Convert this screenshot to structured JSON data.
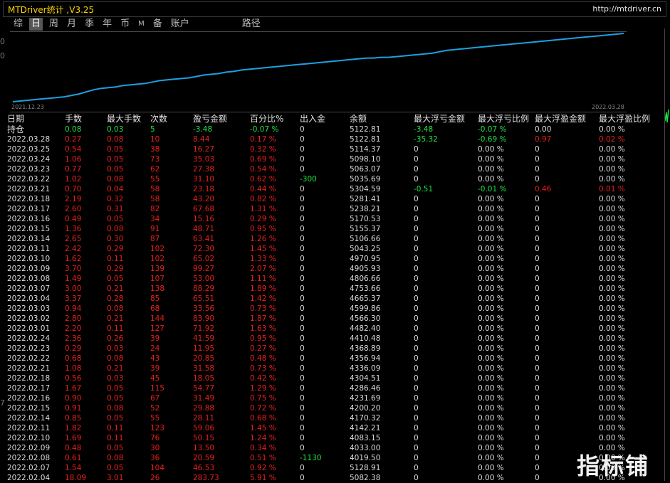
{
  "window": {
    "title": "MTDriver统计 ,V3.25",
    "url": "http://mtdriver.cn"
  },
  "tabs": [
    {
      "label": "综"
    },
    {
      "label": "日"
    },
    {
      "label": "周"
    },
    {
      "label": "月"
    },
    {
      "label": "季"
    },
    {
      "label": "年"
    },
    {
      "label": "币"
    },
    {
      "label": "M"
    },
    {
      "label": "备"
    },
    {
      "label": "账户"
    },
    {
      "label": "路径"
    }
  ],
  "active_tab": "日",
  "side_marks": {
    "left": "0",
    "left2": "0",
    "left3": "7"
  },
  "chart_data": {
    "type": "line",
    "x_start": "2021.12.23",
    "x_end": "2022.03.28",
    "line_color": "#1ea0e0",
    "y": [
      0,
      1,
      2,
      3,
      4,
      5,
      6,
      7,
      9,
      11,
      14,
      17,
      19,
      20,
      21,
      23,
      24,
      25,
      26,
      28,
      30,
      31,
      32,
      33,
      34,
      36,
      38,
      39,
      40,
      42,
      43,
      45,
      46,
      47,
      48,
      49,
      50,
      51,
      52,
      53,
      54,
      55,
      56,
      57,
      58,
      59,
      60,
      61,
      62,
      62,
      63,
      63,
      64,
      65,
      66,
      67,
      68,
      69,
      71,
      73,
      74,
      75,
      76,
      77,
      78,
      79,
      80,
      81,
      82,
      83,
      84,
      85,
      86,
      87,
      88,
      89,
      90,
      91,
      92,
      93,
      94,
      95,
      96,
      97
    ]
  },
  "table": {
    "headers": [
      "日期",
      "手数",
      "最大手数",
      "次数",
      "盈亏金额",
      "百分比%",
      "出入金",
      "余额",
      "最大浮亏金额",
      "最大浮亏比例",
      "最大浮盈金额",
      "最大浮盈比例"
    ],
    "holding": {
      "label": "持仓",
      "lots": "0.08",
      "max_lots": "0.03",
      "count": "5",
      "pnl": "-3.48",
      "pct": "-0.07 %",
      "io": "0",
      "balance": "5122.81",
      "mfl": "-3.48",
      "mflp": "-0.07 %",
      "mfp": "0.00",
      "mfpp": "0.00 %"
    },
    "rows": [
      [
        "2022.03.28",
        "0.27",
        "0.08",
        "10",
        "8.44",
        "0.17 %",
        "0",
        "5122.81",
        "-35.32",
        "-0.69 %",
        "0.97",
        "0.02 %"
      ],
      [
        "2022.03.25",
        "0.54",
        "0.05",
        "38",
        "16.27",
        "0.32 %",
        "0",
        "5114.37",
        "0",
        "0.00 %",
        "0",
        "0.00 %"
      ],
      [
        "2022.03.24",
        "1.06",
        "0.05",
        "73",
        "35.03",
        "0.69 %",
        "0",
        "5098.10",
        "0",
        "0.00 %",
        "0",
        "0.00 %"
      ],
      [
        "2022.03.23",
        "0.77",
        "0.05",
        "62",
        "27.38",
        "0.54 %",
        "0",
        "5063.07",
        "0",
        "0.00 %",
        "0",
        "0.00 %"
      ],
      [
        "2022.03.22",
        "1.02",
        "0.08",
        "55",
        "31.10",
        "0.62 %",
        "-300",
        "5035.69",
        "0",
        "0.00 %",
        "0",
        "0.00 %"
      ],
      [
        "2022.03.21",
        "0.70",
        "0.04",
        "58",
        "23.18",
        "0.44 %",
        "0",
        "5304.59",
        "-0.51",
        "-0.01 %",
        "0.46",
        "0.01 %"
      ],
      [
        "2022.03.18",
        "2.19",
        "0.32",
        "58",
        "43.20",
        "0.82 %",
        "0",
        "5281.41",
        "0",
        "0.00 %",
        "0",
        "0.00 %"
      ],
      [
        "2022.03.17",
        "2.60",
        "0.31",
        "82",
        "67.68",
        "1.31 %",
        "0",
        "5238.21",
        "0",
        "0.00 %",
        "0",
        "0.00 %"
      ],
      [
        "2022.03.16",
        "0.49",
        "0.05",
        "34",
        "15.16",
        "0.29 %",
        "0",
        "5170.53",
        "0",
        "0.00 %",
        "0",
        "0.00 %"
      ],
      [
        "2022.03.15",
        "1.36",
        "0.08",
        "91",
        "48.71",
        "0.95 %",
        "0",
        "5155.37",
        "0",
        "0.00 %",
        "0",
        "0.00 %"
      ],
      [
        "2022.03.14",
        "2.65",
        "0.30",
        "87",
        "63.41",
        "1.26 %",
        "0",
        "5106.66",
        "0",
        "0.00 %",
        "0",
        "0.00 %"
      ],
      [
        "2022.03.11",
        "2.42",
        "0.29",
        "102",
        "72.30",
        "1.45 %",
        "0",
        "5043.25",
        "0",
        "0.00 %",
        "0",
        "0.00 %"
      ],
      [
        "2022.03.10",
        "1.62",
        "0.11",
        "102",
        "65.02",
        "1.33 %",
        "0",
        "4970.95",
        "0",
        "0.00 %",
        "0",
        "0.00 %"
      ],
      [
        "2022.03.09",
        "3.70",
        "0.29",
        "139",
        "99.27",
        "2.07 %",
        "0",
        "4905.93",
        "0",
        "0.00 %",
        "0",
        "0.00 %"
      ],
      [
        "2022.03.08",
        "1.49",
        "0.05",
        "107",
        "53.00",
        "1.11 %",
        "0",
        "4806.66",
        "0",
        "0.00 %",
        "0",
        "0.00 %"
      ],
      [
        "2022.03.07",
        "3.00",
        "0.21",
        "138",
        "88.29",
        "1.89 %",
        "0",
        "4753.66",
        "0",
        "0.00 %",
        "0",
        "0.00 %"
      ],
      [
        "2022.03.04",
        "3.37",
        "0.28",
        "85",
        "65.51",
        "1.42 %",
        "0",
        "4665.37",
        "0",
        "0.00 %",
        "0",
        "0.00 %"
      ],
      [
        "2022.03.03",
        "0.94",
        "0.08",
        "68",
        "33.56",
        "0.73 %",
        "0",
        "4599.86",
        "0",
        "0.00 %",
        "0",
        "0.00 %"
      ],
      [
        "2022.03.02",
        "2.80",
        "0.21",
        "144",
        "83.90",
        "1.87 %",
        "0",
        "4566.30",
        "0",
        "0.00 %",
        "0",
        "0.00 %"
      ],
      [
        "2022.03.01",
        "2.20",
        "0.11",
        "127",
        "71.92",
        "1.63 %",
        "0",
        "4482.40",
        "0",
        "0.00 %",
        "0",
        "0.00 %"
      ],
      [
        "2022.02.24",
        "2.36",
        "0.26",
        "39",
        "41.59",
        "0.95 %",
        "0",
        "4410.48",
        "0",
        "0.00 %",
        "0",
        "0.00 %"
      ],
      [
        "2022.02.23",
        "0.29",
        "0.03",
        "24",
        "11.95",
        "0.27 %",
        "0",
        "4368.89",
        "0",
        "0.00 %",
        "0",
        "0.00 %"
      ],
      [
        "2022.02.22",
        "0.68",
        "0.08",
        "43",
        "20.85",
        "0.48 %",
        "0",
        "4356.94",
        "0",
        "0.00 %",
        "0",
        "0.00 %"
      ],
      [
        "2022.02.21",
        "1.08",
        "0.21",
        "39",
        "31.58",
        "0.73 %",
        "0",
        "4336.09",
        "0",
        "0.00 %",
        "0",
        "0.00 %"
      ],
      [
        "2022.02.18",
        "0.56",
        "0.03",
        "45",
        "18.05",
        "0.42 %",
        "0",
        "4304.51",
        "0",
        "0.00 %",
        "0",
        "0.00 %"
      ],
      [
        "2022.02.17",
        "1.67",
        "0.05",
        "115",
        "54.77",
        "1.29 %",
        "0",
        "4286.46",
        "0",
        "0.00 %",
        "0",
        "0.00 %"
      ],
      [
        "2022.02.16",
        "0.90",
        "0.05",
        "67",
        "31.49",
        "0.75 %",
        "0",
        "4231.69",
        "0",
        "0.00 %",
        "0",
        "0.00 %"
      ],
      [
        "2022.02.15",
        "0.91",
        "0.08",
        "52",
        "29.88",
        "0.72 %",
        "0",
        "4200.20",
        "0",
        "0.00 %",
        "0",
        "0.00 %"
      ],
      [
        "2022.02.14",
        "0.85",
        "0.05",
        "55",
        "28.11",
        "0.68 %",
        "0",
        "4170.32",
        "0",
        "0.00 %",
        "0",
        "0.00 %"
      ],
      [
        "2022.02.11",
        "1.82",
        "0.11",
        "123",
        "59.06",
        "1.45 %",
        "0",
        "4142.21",
        "0",
        "0.00 %",
        "0",
        "0.00 %"
      ],
      [
        "2022.02.10",
        "1.69",
        "0.11",
        "76",
        "50.15",
        "1.24 %",
        "0",
        "4083.15",
        "0",
        "0.00 %",
        "0",
        "0.00 %"
      ],
      [
        "2022.02.09",
        "0.48",
        "0.05",
        "30",
        "13.50",
        "0.34 %",
        "0",
        "4033.00",
        "0",
        "0.00 %",
        "0",
        "0.00 %"
      ],
      [
        "2022.02.08",
        "0.61",
        "0.08",
        "36",
        "20.59",
        "0.51 %",
        "-1130",
        "4019.50",
        "0",
        "0.00 %",
        "0",
        "0.00 %"
      ],
      [
        "2022.02.07",
        "1.54",
        "0.05",
        "104",
        "46.53",
        "0.92 %",
        "0",
        "5128.91",
        "0",
        "0.00 %",
        "0",
        "0.00 %"
      ],
      [
        "2022.02.04",
        "18.09",
        "3.01",
        "26",
        "283.73",
        "5.91 %",
        "0",
        "5082.38",
        "0",
        "0.00 %",
        "0",
        "0.00 %"
      ]
    ]
  },
  "watermark": "指标铺"
}
